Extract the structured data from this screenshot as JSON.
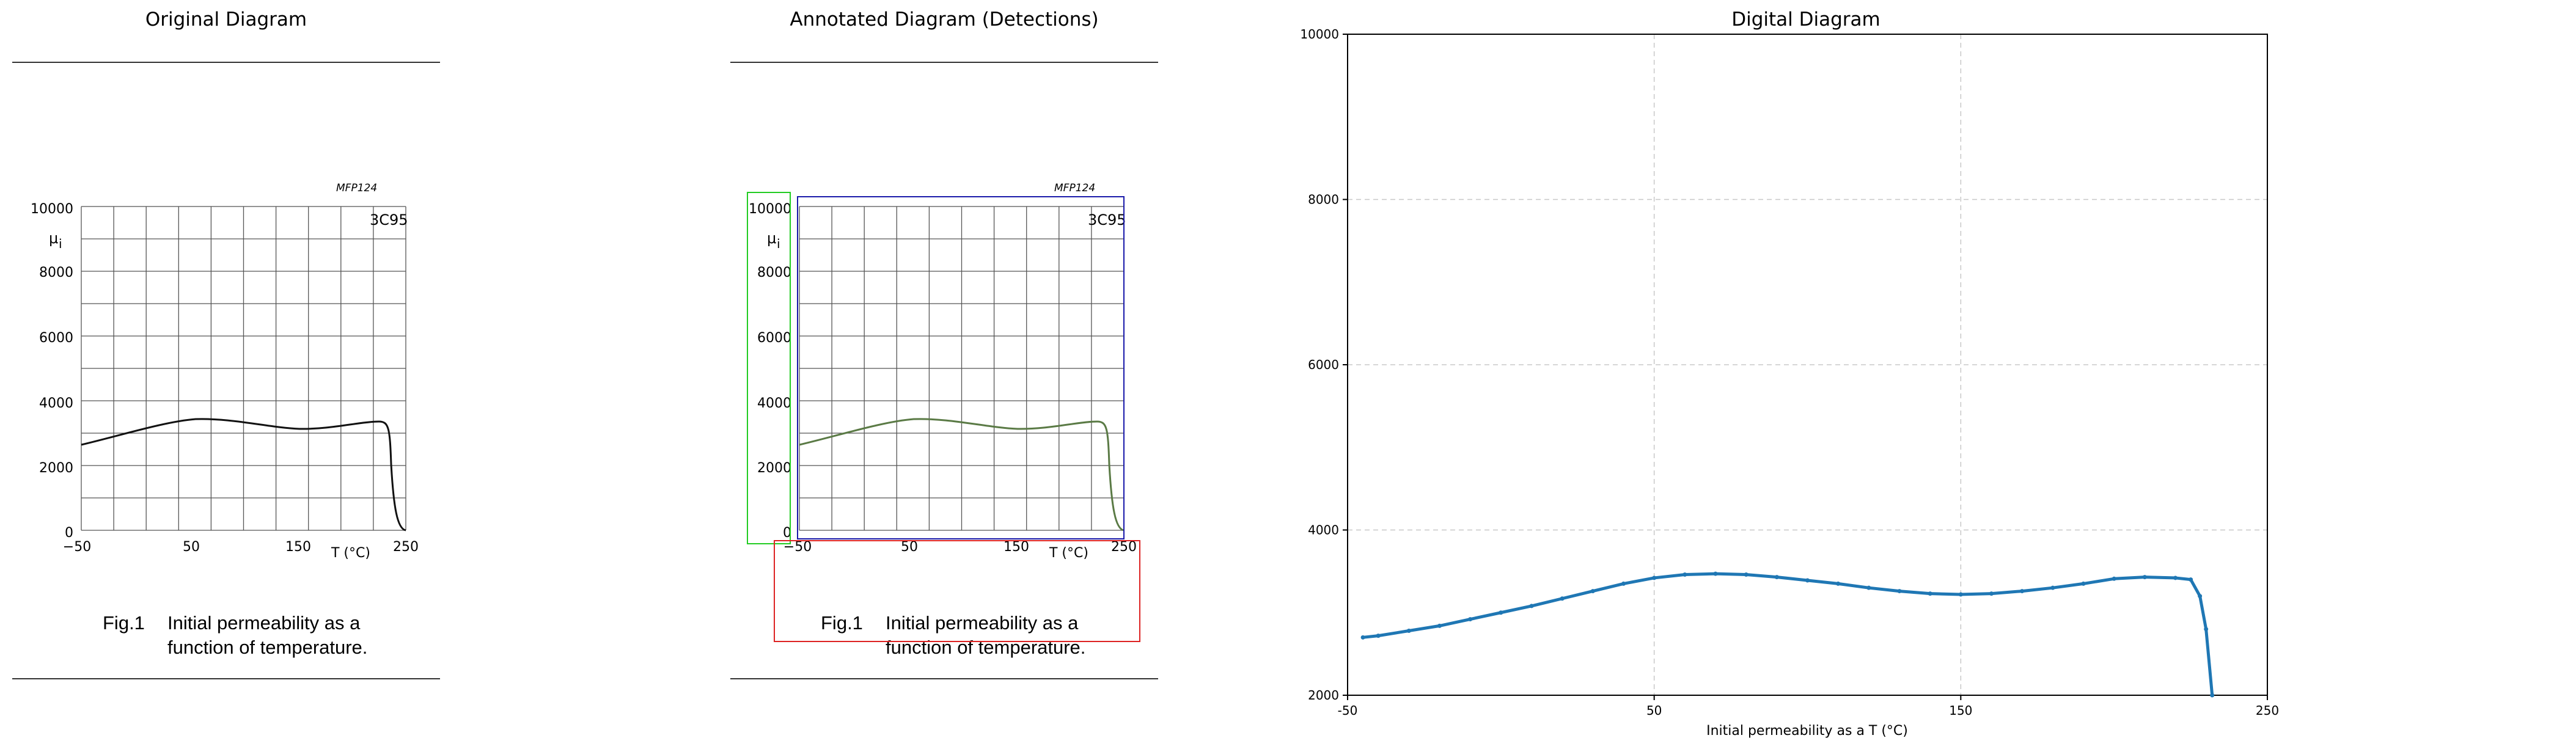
{
  "panels": {
    "original_title": "Original Diagram",
    "annotated_title": "Annotated Diagram (Detections)",
    "digital_title": "Digital Diagram"
  },
  "diagram": {
    "code": "MFP124",
    "material": "3C95",
    "y_symbol": "μ",
    "y_subscript": "i",
    "x_label": "T  (°C)",
    "y_ticks": [
      "10000",
      "8000",
      "6000",
      "4000",
      "2000",
      "0"
    ],
    "x_ticks": [
      "−50",
      "50",
      "150",
      "250"
    ],
    "fig_number": "Fig.1",
    "caption_line1": "Initial permeability as a",
    "caption_line2": "function of temperature."
  },
  "detections": {
    "colors": {
      "y_axis": "#22cc22",
      "plot": "#1a1aaa",
      "x_axis": "#dd2222",
      "curve": "#5a7a45"
    }
  },
  "chart_data": {
    "type": "line",
    "title": "Digital Diagram",
    "xlabel": "Initial permeability as a T (°C)",
    "ylabel": "",
    "xlim": [
      -50,
      250
    ],
    "ylim": [
      2000,
      10000
    ],
    "x_ticks": [
      -50,
      50,
      150,
      250
    ],
    "y_ticks": [
      2000,
      4000,
      6000,
      8000,
      10000
    ],
    "x_tick_labels": [
      "-50",
      "50",
      "150",
      "250"
    ],
    "y_tick_labels": [
      "2000",
      "4000",
      "6000",
      "8000",
      "10000"
    ],
    "grid": true,
    "series": [
      {
        "color": "#1f77b4",
        "x": [
          -45,
          -40,
          -30,
          -20,
          -10,
          0,
          10,
          20,
          30,
          40,
          50,
          60,
          70,
          80,
          90,
          100,
          110,
          120,
          130,
          140,
          150,
          160,
          170,
          180,
          190,
          200,
          210,
          220,
          225,
          228,
          230,
          232
        ],
        "y": [
          2700,
          2720,
          2780,
          2840,
          2920,
          3000,
          3080,
          3170,
          3260,
          3350,
          3420,
          3460,
          3470,
          3460,
          3430,
          3390,
          3350,
          3300,
          3260,
          3230,
          3220,
          3230,
          3260,
          3300,
          3350,
          3410,
          3430,
          3420,
          3400,
          3200,
          2800,
          2000
        ]
      }
    ]
  }
}
